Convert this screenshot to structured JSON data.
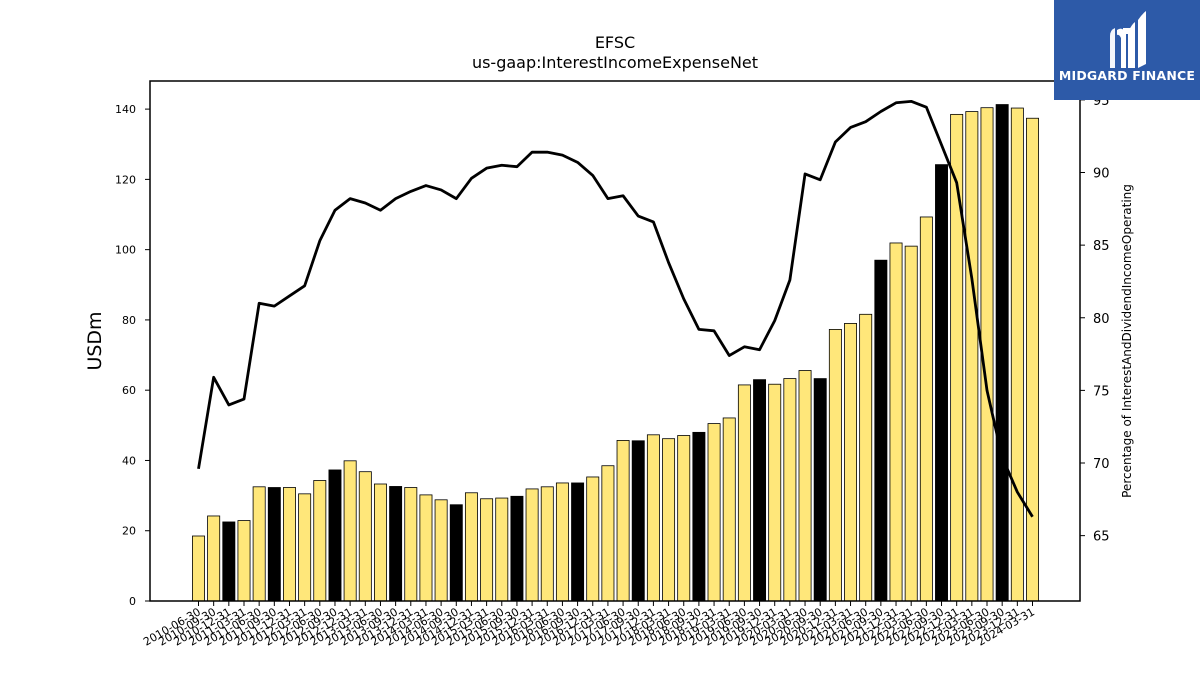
{
  "brand": {
    "name": "MIDGARD FINANCE",
    "icon": "midgard-logo-icon",
    "bg": "#2d5aa8"
  },
  "colors": {
    "bar": "#ffe77a",
    "bar_highlight": "#000000",
    "line": "#000000"
  },
  "chart_data": {
    "type": "bar",
    "title": "EFSC",
    "subtitle": "us-gaap:InterestIncomeExpenseNet",
    "ylabel": "USDm",
    "y2label": "Percentage of InterestAndDividendIncomeOperating",
    "ylim": [
      0,
      148
    ],
    "yticks": [
      0,
      20,
      40,
      60,
      80,
      100,
      120,
      140
    ],
    "y2lim": [
      60.5,
      96.3
    ],
    "y2ticks": [
      65,
      70,
      75,
      80,
      85,
      90,
      95
    ],
    "categories": [
      "2010-06-30",
      "2010-09-30",
      "2010-12-31",
      "2011-03-31",
      "2011-06-30",
      "2011-09-30",
      "2011-12-31",
      "2012-03-31",
      "2012-06-30",
      "2012-09-30",
      "2012-12-31",
      "2013-03-31",
      "2013-06-30",
      "2013-09-30",
      "2013-12-31",
      "2014-03-31",
      "2014-06-30",
      "2014-09-30",
      "2014-12-31",
      "2015-03-31",
      "2015-06-30",
      "2015-09-30",
      "2015-12-31",
      "2016-03-31",
      "2016-06-30",
      "2016-09-30",
      "2016-12-31",
      "2017-03-31",
      "2017-06-30",
      "2017-09-30",
      "2017-12-31",
      "2018-03-31",
      "2018-06-30",
      "2018-09-30",
      "2018-12-31",
      "2019-03-31",
      "2019-06-30",
      "2019-09-30",
      "2019-12-31",
      "2020-03-31",
      "2020-06-30",
      "2020-09-30",
      "2020-12-31",
      "2021-03-31",
      "2021-06-30",
      "2021-09-30",
      "2021-12-31",
      "2022-03-31",
      "2022-06-30",
      "2022-09-30",
      "2022-12-31",
      "2023-03-31",
      "2023-06-30",
      "2023-09-30",
      "2023-12-31",
      "2024-03-31"
    ],
    "series": [
      {
        "type": "bar",
        "axis": "left",
        "values": [
          18.5,
          24.2,
          22.5,
          22.9,
          32.5,
          32.3,
          32.3,
          30.5,
          34.3,
          37.3,
          39.9,
          36.8,
          33.3,
          32.6,
          32.3,
          30.2,
          28.8,
          27.4,
          30.8,
          29.1,
          29.3,
          29.8,
          31.9,
          32.5,
          33.6,
          33.6,
          35.3,
          38.5,
          45.7,
          45.6,
          47.3,
          46.2,
          47.1,
          48.0,
          50.5,
          52.1,
          61.5,
          63.0,
          61.7,
          63.3,
          65.6,
          63.3,
          77.3,
          79.0,
          81.6,
          97.0,
          101.9,
          101.0,
          109.3,
          124.2,
          138.5,
          139.3,
          140.4,
          141.3,
          140.3,
          137.4
        ],
        "highlighted_categories": [
          "2010-12-31",
          "2011-09-30",
          "2012-09-30",
          "2013-09-30",
          "2014-09-30",
          "2015-09-30",
          "2016-09-30",
          "2017-09-30",
          "2018-09-30",
          "2019-09-30",
          "2020-09-30",
          "2021-09-30",
          "2022-09-30",
          "2023-09-30"
        ]
      },
      {
        "type": "line",
        "axis": "right",
        "values": [
          69.6,
          75.9,
          74.0,
          74.4,
          81.0,
          80.8,
          81.5,
          82.2,
          85.3,
          87.4,
          88.2,
          87.9,
          87.4,
          88.2,
          88.7,
          89.1,
          88.8,
          88.2,
          89.6,
          90.3,
          90.5,
          90.4,
          91.4,
          91.4,
          91.2,
          90.7,
          89.8,
          88.2,
          88.4,
          87.0,
          86.6,
          83.8,
          81.3,
          79.2,
          79.1,
          77.4,
          78.0,
          77.8,
          79.8,
          82.6,
          89.9,
          89.5,
          92.1,
          93.1,
          93.5,
          94.2,
          94.8,
          94.9,
          94.5,
          91.9,
          89.3,
          82.7,
          75.0,
          70.4,
          68.0,
          66.3
        ]
      }
    ],
    "grid": false,
    "legend": "none"
  }
}
